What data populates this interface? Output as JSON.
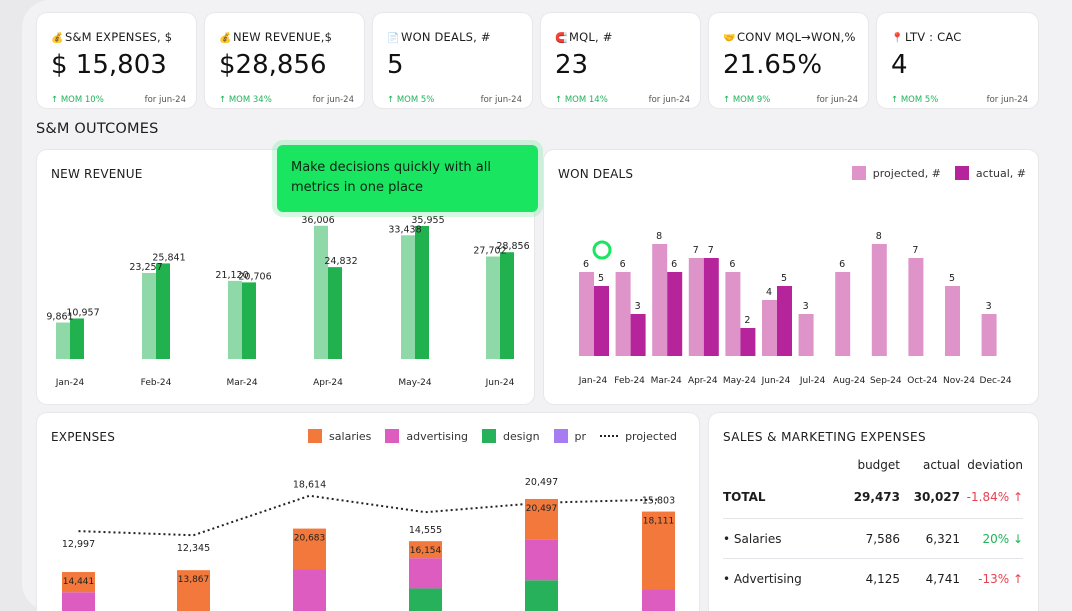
{
  "kpis": [
    {
      "icon": "money-bag-icon",
      "glyph": "💰",
      "title": "S&M EXPENSES, $",
      "value": "$ 15,803",
      "mom": "↑ MOM 10%",
      "for": "for jun-24"
    },
    {
      "icon": "money-bag-icon",
      "glyph": "💰",
      "title": "NEW REVENUE,$",
      "value": "$28,856",
      "mom": "↑ MOM 34%",
      "for": "for jun-24"
    },
    {
      "icon": "document-icon",
      "glyph": "📄",
      "title": "WON DEALS, #",
      "value": "5",
      "mom": "↑ MOM 5%",
      "for": "for jun-24"
    },
    {
      "icon": "magnet-icon",
      "glyph": "🧲",
      "title": "MQL, #",
      "value": "23",
      "mom": "↑ MOM 14%",
      "for": "for jun-24"
    },
    {
      "icon": "handshake-icon",
      "glyph": "🤝",
      "title": "CONV MQL→WON,%",
      "value": "21.65%",
      "mom": "↑ MOM 9%",
      "for": "for jun-24"
    },
    {
      "icon": "pin-icon",
      "glyph": "📍",
      "title": "LTV : CAC",
      "value": "4",
      "mom": "↑ MOM 5%",
      "for": "for jun-24"
    }
  ],
  "section_title": "S&M OUTCOMES",
  "tooltip": "Make decisions quickly with all metrics in one place",
  "colors": {
    "green_light": "#8fd9a8",
    "green_dark": "#22b14f",
    "pink_light": "#de94c9",
    "magenta": "#b5249a",
    "salaries": "#f2783c",
    "advertising": "#dd5cc0",
    "design": "#27b15a",
    "pr": "#a77cf2"
  },
  "chart_data": [
    {
      "type": "bar",
      "title": "NEW REVENUE",
      "categories": [
        "Jan-24",
        "Feb-24",
        "Mar-24",
        "Apr-24",
        "May-24",
        "Jun-24"
      ],
      "series": [
        {
          "values": [
            9861,
            23257,
            21120,
            36006,
            33438,
            27702
          ]
        },
        {
          "values": [
            10957,
            25841,
            20706,
            24832,
            35955,
            28856
          ]
        }
      ],
      "labels": [
        [
          "9,861",
          "23,257",
          "21,120",
          "36,006",
          "33,438",
          "27,702"
        ],
        [
          "10,957",
          "25,841",
          "20,706",
          "24,832",
          "35,955",
          "28,856"
        ]
      ]
    },
    {
      "type": "bar",
      "title": "WON DEALS",
      "legend": [
        "projected, #",
        "actual, #"
      ],
      "categories": [
        "Jan-24",
        "Feb-24",
        "Mar-24",
        "Apr-24",
        "May-24",
        "Jun-24",
        "Jul-24",
        "Aug-24",
        "Sep-24",
        "Oct-24",
        "Nov-24",
        "Dec-24"
      ],
      "series": [
        {
          "name": "projected, #",
          "values": [
            6,
            6,
            8,
            7,
            6,
            4,
            3,
            6,
            8,
            7,
            5,
            3
          ]
        },
        {
          "name": "actual, #",
          "values": [
            5,
            3,
            6,
            7,
            2,
            5,
            null,
            null,
            null,
            null,
            null,
            null
          ]
        }
      ]
    },
    {
      "type": "bar",
      "title": "EXPENSES",
      "legend": [
        "salaries",
        "advertising",
        "design",
        "pr",
        "projected"
      ],
      "projected": [
        12997,
        12345,
        18614,
        16000,
        17500,
        18000
      ],
      "projected_labels": [
        "12,997",
        "12,345",
        "18,614",
        "",
        "",
        ""
      ],
      "bar_labels_top": [
        "",
        "",
        "",
        "14,555",
        "20,497",
        "15,803"
      ],
      "bar_labels_inside": [
        "14,441",
        "13,867",
        "20,683",
        "16,154",
        "20,497",
        "18,111"
      ],
      "stack_values": [
        {
          "salaries": 3200,
          "advertising": 3300,
          "design": 0
        },
        {
          "salaries": 6800,
          "advertising": 0,
          "design": 0
        },
        {
          "salaries": 6500,
          "advertising": 6900,
          "design": 0
        },
        {
          "salaries": 2700,
          "advertising": 4800,
          "design": 3900
        },
        {
          "salaries": 6400,
          "advertising": 6500,
          "design": 5200
        },
        {
          "salaries": 12300,
          "advertising": 3800,
          "design": 0
        }
      ]
    }
  ],
  "table": {
    "title": "SALES & MARKETING EXPENSES",
    "headers": [
      "budget",
      "actual",
      "deviation"
    ],
    "rows": [
      {
        "label": "TOTAL",
        "budget": "29,473",
        "actual": "30,027",
        "deviation": "-1.84% ↑",
        "kind": "neg",
        "bold": true
      },
      {
        "label": "• Salaries",
        "budget": "7,586",
        "actual": "6,321",
        "deviation": "20% ↓",
        "kind": "pos",
        "bold": false
      },
      {
        "label": "• Advertising",
        "budget": "4,125",
        "actual": "4,741",
        "deviation": "-13% ↑",
        "kind": "neg",
        "bold": false
      }
    ]
  }
}
